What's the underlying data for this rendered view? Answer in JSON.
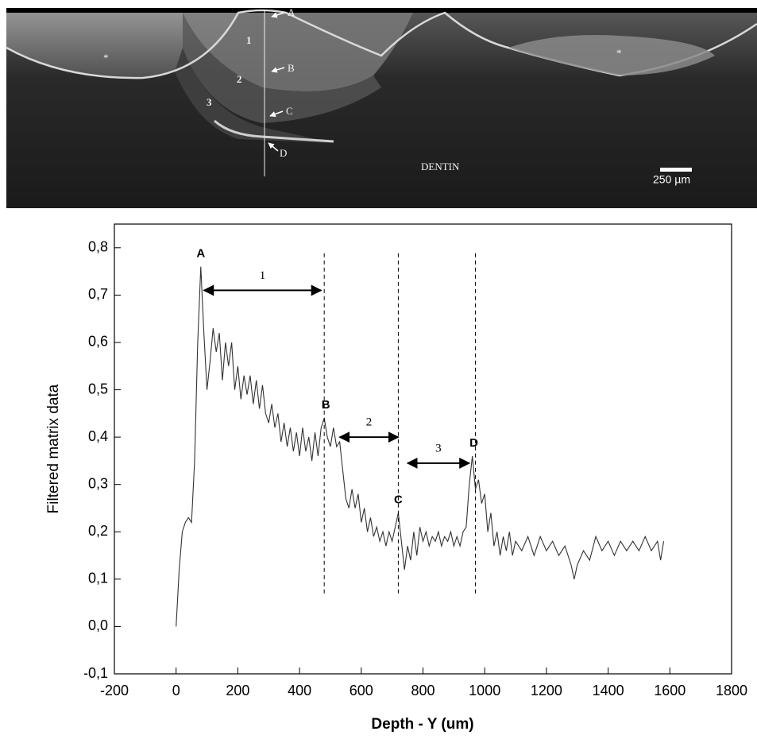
{
  "image": {
    "labels": [
      "A",
      "B",
      "C",
      "D",
      "1",
      "2",
      "3",
      "*",
      "*",
      "DENTIN",
      "250 µm"
    ]
  },
  "chart_data": {
    "type": "line",
    "x_label": "Depth - Y (um)",
    "y_label": "Filtered matrix data",
    "color": "#333333",
    "xlim": [
      -200,
      1800
    ],
    "xticks": [
      -200,
      0,
      200,
      400,
      600,
      800,
      1000,
      1200,
      1400,
      1600,
      1800
    ],
    "ylim": [
      -0.1,
      0.85
    ],
    "yticks": [
      {
        "value": -0.1,
        "label": "-0,1"
      },
      {
        "value": 0,
        "label": "0,0"
      },
      {
        "value": 0.1,
        "label": "0,1"
      },
      {
        "value": 0.2,
        "label": "0,2"
      },
      {
        "value": 0.3,
        "label": "0,3"
      },
      {
        "value": 0.4,
        "label": "0,4"
      },
      {
        "value": 0.5,
        "label": "0,5"
      },
      {
        "value": 0.6,
        "label": "0,6"
      },
      {
        "value": 0.7,
        "label": "0,7"
      },
      {
        "value": 0.8,
        "label": "0,8"
      }
    ],
    "x": [
      0,
      10,
      20,
      30,
      40,
      50,
      60,
      70,
      80,
      90,
      100,
      110,
      120,
      130,
      140,
      150,
      160,
      170,
      180,
      190,
      200,
      210,
      220,
      230,
      240,
      250,
      260,
      270,
      280,
      290,
      300,
      310,
      320,
      330,
      340,
      350,
      360,
      370,
      380,
      390,
      400,
      410,
      420,
      430,
      440,
      450,
      460,
      470,
      480,
      490,
      500,
      510,
      520,
      530,
      540,
      550,
      560,
      570,
      580,
      590,
      600,
      610,
      620,
      630,
      640,
      650,
      660,
      670,
      680,
      690,
      700,
      710,
      720,
      730,
      740,
      750,
      760,
      770,
      780,
      790,
      800,
      810,
      820,
      830,
      840,
      850,
      860,
      870,
      880,
      890,
      900,
      910,
      920,
      930,
      940,
      950,
      960,
      970,
      980,
      990,
      1000,
      1010,
      1020,
      1030,
      1040,
      1050,
      1060,
      1070,
      1080,
      1090,
      1100,
      1120,
      1140,
      1160,
      1180,
      1200,
      1220,
      1240,
      1260,
      1280,
      1290,
      1300,
      1320,
      1340,
      1360,
      1380,
      1400,
      1420,
      1440,
      1460,
      1480,
      1500,
      1520,
      1540,
      1560,
      1570,
      1580
    ],
    "values": [
      0.0,
      0.12,
      0.2,
      0.22,
      0.23,
      0.22,
      0.35,
      0.6,
      0.76,
      0.62,
      0.5,
      0.56,
      0.63,
      0.58,
      0.62,
      0.52,
      0.6,
      0.55,
      0.6,
      0.5,
      0.55,
      0.48,
      0.53,
      0.49,
      0.53,
      0.47,
      0.52,
      0.46,
      0.51,
      0.45,
      0.43,
      0.47,
      0.42,
      0.45,
      0.39,
      0.43,
      0.38,
      0.42,
      0.37,
      0.41,
      0.36,
      0.42,
      0.37,
      0.4,
      0.35,
      0.41,
      0.36,
      0.42,
      0.44,
      0.4,
      0.38,
      0.42,
      0.38,
      0.39,
      0.33,
      0.27,
      0.25,
      0.29,
      0.25,
      0.28,
      0.22,
      0.25,
      0.2,
      0.23,
      0.19,
      0.21,
      0.18,
      0.2,
      0.17,
      0.2,
      0.18,
      0.21,
      0.24,
      0.18,
      0.12,
      0.17,
      0.14,
      0.2,
      0.15,
      0.21,
      0.18,
      0.2,
      0.17,
      0.19,
      0.18,
      0.2,
      0.17,
      0.19,
      0.18,
      0.2,
      0.17,
      0.19,
      0.17,
      0.2,
      0.21,
      0.3,
      0.36,
      0.29,
      0.31,
      0.26,
      0.28,
      0.2,
      0.24,
      0.17,
      0.2,
      0.15,
      0.19,
      0.16,
      0.2,
      0.15,
      0.18,
      0.16,
      0.19,
      0.15,
      0.19,
      0.16,
      0.18,
      0.15,
      0.17,
      0.13,
      0.1,
      0.13,
      0.16,
      0.14,
      0.19,
      0.16,
      0.18,
      0.15,
      0.18,
      0.16,
      0.18,
      0.16,
      0.19,
      0.16,
      0.18,
      0.14,
      0.18
    ],
    "peak_labels": [
      {
        "text": "A",
        "x": 80,
        "y": 0.76
      },
      {
        "text": "B",
        "x": 485,
        "y": 0.44
      },
      {
        "text": "C",
        "x": 720,
        "y": 0.24
      },
      {
        "text": "D",
        "x": 965,
        "y": 0.36
      }
    ],
    "reference_lines": {
      "x": [
        480,
        720,
        970
      ],
      "y_from": 0.07,
      "y_to": 0.79
    },
    "ranges": [
      {
        "label": "1",
        "from": 90,
        "to": 470,
        "y": 0.71
      },
      {
        "label": "2",
        "from": 530,
        "to": 720,
        "y": 0.4
      },
      {
        "label": "3",
        "from": 750,
        "to": 950,
        "y": 0.345
      }
    ]
  }
}
